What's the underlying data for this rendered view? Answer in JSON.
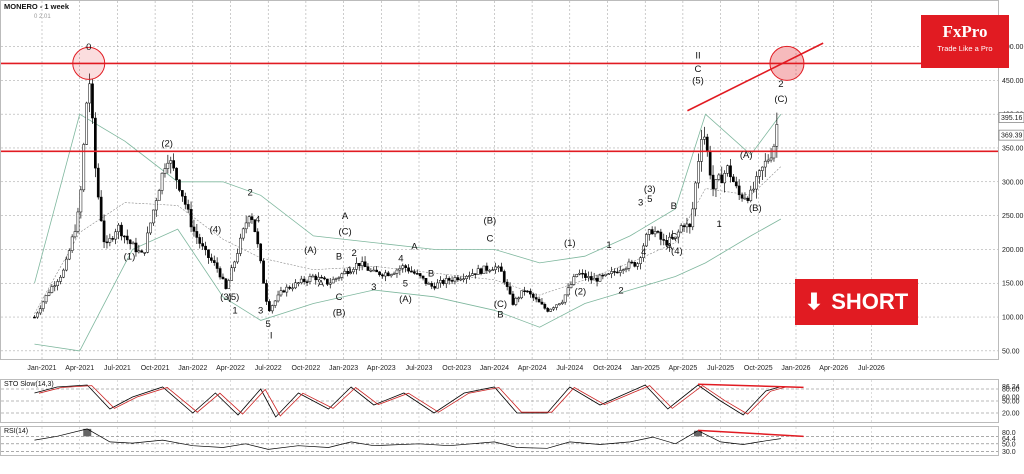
{
  "chart_data": [
    {
      "type": "candlestick",
      "title": "MONERO - 1 week",
      "subtitle": "0 2.01",
      "x_labels": [
        "Jan-2021",
        "Apr-2021",
        "Jul-2021",
        "Oct-2021",
        "Jan-2022",
        "Apr-2022",
        "Jul-2022",
        "Oct-2022",
        "Jan-2023",
        "Apr-2023",
        "Jul-2023",
        "Oct-2023",
        "Jan-2024",
        "Apr-2024",
        "Jul-2024",
        "Oct-2024",
        "Jan-2025",
        "Apr-2025",
        "Jul-2025",
        "Oct-2025",
        "Jan-2026",
        "Apr-2026",
        "Jul-2026"
      ],
      "y_ticks": [
        50,
        100,
        150,
        200,
        250,
        300,
        350,
        400,
        450,
        500
      ],
      "ylim": [
        35,
        520
      ],
      "price_tags": [
        "395.16",
        "369.39"
      ],
      "price_path": [
        [
          2020.95,
          100
        ],
        [
          2021.05,
          140
        ],
        [
          2021.15,
          170
        ],
        [
          2021.25,
          260
        ],
        [
          2021.31,
          465
        ],
        [
          2021.36,
          300
        ],
        [
          2021.42,
          200
        ],
        [
          2021.5,
          235
        ],
        [
          2021.58,
          210
        ],
        [
          2021.67,
          190
        ],
        [
          2021.75,
          270
        ],
        [
          2021.83,
          340
        ],
        [
          2021.92,
          290
        ],
        [
          2022.0,
          230
        ],
        [
          2022.08,
          195
        ],
        [
          2022.17,
          170
        ],
        [
          2022.22,
          140
        ],
        [
          2022.3,
          200
        ],
        [
          2022.38,
          260
        ],
        [
          2022.42,
          220
        ],
        [
          2022.5,
          110
        ],
        [
          2022.6,
          140
        ],
        [
          2022.7,
          150
        ],
        [
          2022.8,
          160
        ],
        [
          2022.9,
          150
        ],
        [
          2023.0,
          165
        ],
        [
          2023.1,
          180
        ],
        [
          2023.2,
          165
        ],
        [
          2023.3,
          165
        ],
        [
          2023.4,
          175
        ],
        [
          2023.5,
          160
        ],
        [
          2023.58,
          145
        ],
        [
          2023.7,
          155
        ],
        [
          2023.85,
          165
        ],
        [
          2024.0,
          175
        ],
        [
          2024.05,
          165
        ],
        [
          2024.12,
          120
        ],
        [
          2024.2,
          140
        ],
        [
          2024.35,
          110
        ],
        [
          2024.45,
          125
        ],
        [
          2024.55,
          165
        ],
        [
          2024.65,
          155
        ],
        [
          2024.75,
          160
        ],
        [
          2024.85,
          175
        ],
        [
          2024.95,
          180
        ],
        [
          2025.0,
          215
        ],
        [
          2025.05,
          230
        ],
        [
          2025.12,
          210
        ],
        [
          2025.2,
          215
        ],
        [
          2025.25,
          240
        ],
        [
          2025.3,
          230
        ],
        [
          2025.38,
          385
        ],
        [
          2025.45,
          290
        ],
        [
          2025.55,
          320
        ],
        [
          2025.62,
          280
        ],
        [
          2025.7,
          280
        ],
        [
          2025.78,
          320
        ],
        [
          2025.85,
          350
        ],
        [
          2025.88,
          395
        ]
      ],
      "horizontal_levels": [
        475,
        345
      ],
      "bollinger_upper": [
        [
          2020.95,
          150
        ],
        [
          2021.25,
          400
        ],
        [
          2021.55,
          360
        ],
        [
          2021.9,
          300
        ],
        [
          2022.2,
          300
        ],
        [
          2022.45,
          280
        ],
        [
          2022.8,
          220
        ],
        [
          2023.2,
          210
        ],
        [
          2023.6,
          200
        ],
        [
          2024.0,
          200
        ],
        [
          2024.3,
          180
        ],
        [
          2024.6,
          190
        ],
        [
          2024.9,
          220
        ],
        [
          2025.2,
          260
        ],
        [
          2025.4,
          400
        ],
        [
          2025.7,
          340
        ],
        [
          2025.9,
          400
        ]
      ],
      "bollinger_lower": [
        [
          2020.95,
          60
        ],
        [
          2021.25,
          50
        ],
        [
          2021.6,
          200
        ],
        [
          2021.9,
          230
        ],
        [
          2022.2,
          130
        ],
        [
          2022.45,
          95
        ],
        [
          2022.8,
          120
        ],
        [
          2023.2,
          140
        ],
        [
          2023.6,
          130
        ],
        [
          2024.0,
          110
        ],
        [
          2024.3,
          85
        ],
        [
          2024.6,
          120
        ],
        [
          2024.9,
          140
        ],
        [
          2025.2,
          160
        ],
        [
          2025.4,
          180
        ],
        [
          2025.7,
          220
        ],
        [
          2025.9,
          245
        ]
      ],
      "wave_labels": [
        {
          "text": "0",
          "x": 2021.31,
          "y": 495
        },
        {
          "text": "(1)",
          "x": 2021.58,
          "y": 185
        },
        {
          "text": "(2)",
          "x": 2021.83,
          "y": 352
        },
        {
          "text": "(4)",
          "x": 2022.15,
          "y": 225
        },
        {
          "text": "(3)",
          "x": 2022.22,
          "y": 125
        },
        {
          "text": "(5)",
          "x": 2022.27,
          "y": 125
        },
        {
          "text": "1",
          "x": 2022.28,
          "y": 105
        },
        {
          "text": "2",
          "x": 2022.38,
          "y": 280
        },
        {
          "text": "4",
          "x": 2022.43,
          "y": 240
        },
        {
          "text": "3",
          "x": 2022.45,
          "y": 105
        },
        {
          "text": "5",
          "x": 2022.5,
          "y": 85
        },
        {
          "text": "I",
          "x": 2022.52,
          "y": 68
        },
        {
          "text": "(A)",
          "x": 2022.78,
          "y": 195
        },
        {
          "text": "A",
          "x": 2022.85,
          "y": 145
        },
        {
          "text": "B",
          "x": 2022.97,
          "y": 185
        },
        {
          "text": "C",
          "x": 2022.97,
          "y": 125
        },
        {
          "text": "(B)",
          "x": 2022.97,
          "y": 102
        },
        {
          "text": "A",
          "x": 2023.01,
          "y": 245
        },
        {
          "text": "(C)",
          "x": 2023.01,
          "y": 222
        },
        {
          "text": "2",
          "x": 2023.07,
          "y": 190
        },
        {
          "text": "1",
          "x": 2023.04,
          "y": 165
        },
        {
          "text": "3",
          "x": 2023.2,
          "y": 140
        },
        {
          "text": "4",
          "x": 2023.38,
          "y": 182
        },
        {
          "text": "5",
          "x": 2023.41,
          "y": 145
        },
        {
          "text": "(A)",
          "x": 2023.41,
          "y": 122
        },
        {
          "text": "A",
          "x": 2023.47,
          "y": 200
        },
        {
          "text": "B",
          "x": 2023.58,
          "y": 160
        },
        {
          "text": "(B)",
          "x": 2023.97,
          "y": 238
        },
        {
          "text": "C",
          "x": 2023.97,
          "y": 212
        },
        {
          "text": "(C)",
          "x": 2024.04,
          "y": 115
        },
        {
          "text": "B",
          "x": 2024.04,
          "y": 99
        },
        {
          "text": "(1)",
          "x": 2024.5,
          "y": 205
        },
        {
          "text": "(2)",
          "x": 2024.57,
          "y": 133
        },
        {
          "text": "1",
          "x": 2024.76,
          "y": 202
        },
        {
          "text": "2",
          "x": 2024.84,
          "y": 135
        },
        {
          "text": "3",
          "x": 2024.97,
          "y": 265
        },
        {
          "text": "(3)",
          "x": 2025.03,
          "y": 285
        },
        {
          "text": "5",
          "x": 2025.03,
          "y": 270
        },
        {
          "text": "4",
          "x": 2024.99,
          "y": 192
        },
        {
          "text": "B",
          "x": 2025.19,
          "y": 260
        },
        {
          "text": "C",
          "x": 2025.19,
          "y": 215
        },
        {
          "text": "A",
          "x": 2025.16,
          "y": 200
        },
        {
          "text": "(4)",
          "x": 2025.21,
          "y": 193
        },
        {
          "text": "II",
          "x": 2025.35,
          "y": 482
        },
        {
          "text": "C",
          "x": 2025.35,
          "y": 462
        },
        {
          "text": "(5)",
          "x": 2025.35,
          "y": 445
        },
        {
          "text": "1",
          "x": 2025.49,
          "y": 233
        },
        {
          "text": "(A)",
          "x": 2025.67,
          "y": 335
        },
        {
          "text": "(B)",
          "x": 2025.73,
          "y": 257
        },
        {
          "text": "2",
          "x": 2025.9,
          "y": 440
        },
        {
          "text": "(C)",
          "x": 2025.9,
          "y": 418
        }
      ]
    },
    {
      "type": "line",
      "title": "STO Slow(14,3)",
      "y_ticks": [
        "86.24",
        "80.00",
        "60.00",
        "50.00",
        "20.00"
      ],
      "ylim": [
        0,
        100
      ],
      "k": [
        [
          2020.95,
          70
        ],
        [
          2021.1,
          85
        ],
        [
          2021.3,
          90
        ],
        [
          2021.45,
          30
        ],
        [
          2021.6,
          60
        ],
        [
          2021.8,
          85
        ],
        [
          2022.0,
          20
        ],
        [
          2022.15,
          70
        ],
        [
          2022.3,
          15
        ],
        [
          2022.45,
          80
        ],
        [
          2022.55,
          10
        ],
        [
          2022.7,
          70
        ],
        [
          2022.9,
          30
        ],
        [
          2023.05,
          85
        ],
        [
          2023.2,
          40
        ],
        [
          2023.4,
          70
        ],
        [
          2023.6,
          20
        ],
        [
          2023.8,
          70
        ],
        [
          2024.0,
          85
        ],
        [
          2024.15,
          20
        ],
        [
          2024.35,
          20
        ],
        [
          2024.5,
          85
        ],
        [
          2024.7,
          40
        ],
        [
          2024.85,
          65
        ],
        [
          2025.0,
          90
        ],
        [
          2025.15,
          30
        ],
        [
          2025.35,
          90
        ],
        [
          2025.5,
          50
        ],
        [
          2025.65,
          15
        ],
        [
          2025.8,
          75
        ],
        [
          2025.9,
          86
        ]
      ]
    },
    {
      "type": "line",
      "title": "RSI(14)",
      "y_ticks": [
        "80.0",
        "64.4",
        "50.0",
        "30.0"
      ],
      "ylim": [
        20,
        95
      ],
      "values": [
        [
          2020.95,
          60
        ],
        [
          2021.1,
          70
        ],
        [
          2021.3,
          90
        ],
        [
          2021.45,
          55
        ],
        [
          2021.6,
          52
        ],
        [
          2021.8,
          60
        ],
        [
          2022.0,
          45
        ],
        [
          2022.2,
          40
        ],
        [
          2022.35,
          50
        ],
        [
          2022.5,
          35
        ],
        [
          2022.7,
          45
        ],
        [
          2022.9,
          40
        ],
        [
          2023.05,
          55
        ],
        [
          2023.2,
          45
        ],
        [
          2023.5,
          50
        ],
        [
          2023.7,
          45
        ],
        [
          2024.0,
          55
        ],
        [
          2024.15,
          40
        ],
        [
          2024.35,
          38
        ],
        [
          2024.5,
          55
        ],
        [
          2024.7,
          48
        ],
        [
          2024.9,
          55
        ],
        [
          2025.05,
          68
        ],
        [
          2025.2,
          50
        ],
        [
          2025.35,
          85
        ],
        [
          2025.5,
          55
        ],
        [
          2025.65,
          48
        ],
        [
          2025.8,
          58
        ],
        [
          2025.9,
          64
        ]
      ]
    }
  ],
  "brand": {
    "name": "FxPro",
    "tagline": "Trade Like a Pro",
    "color": "#e11b22"
  },
  "signal": {
    "label": "SHORT",
    "icon": "arrow-down-icon"
  }
}
